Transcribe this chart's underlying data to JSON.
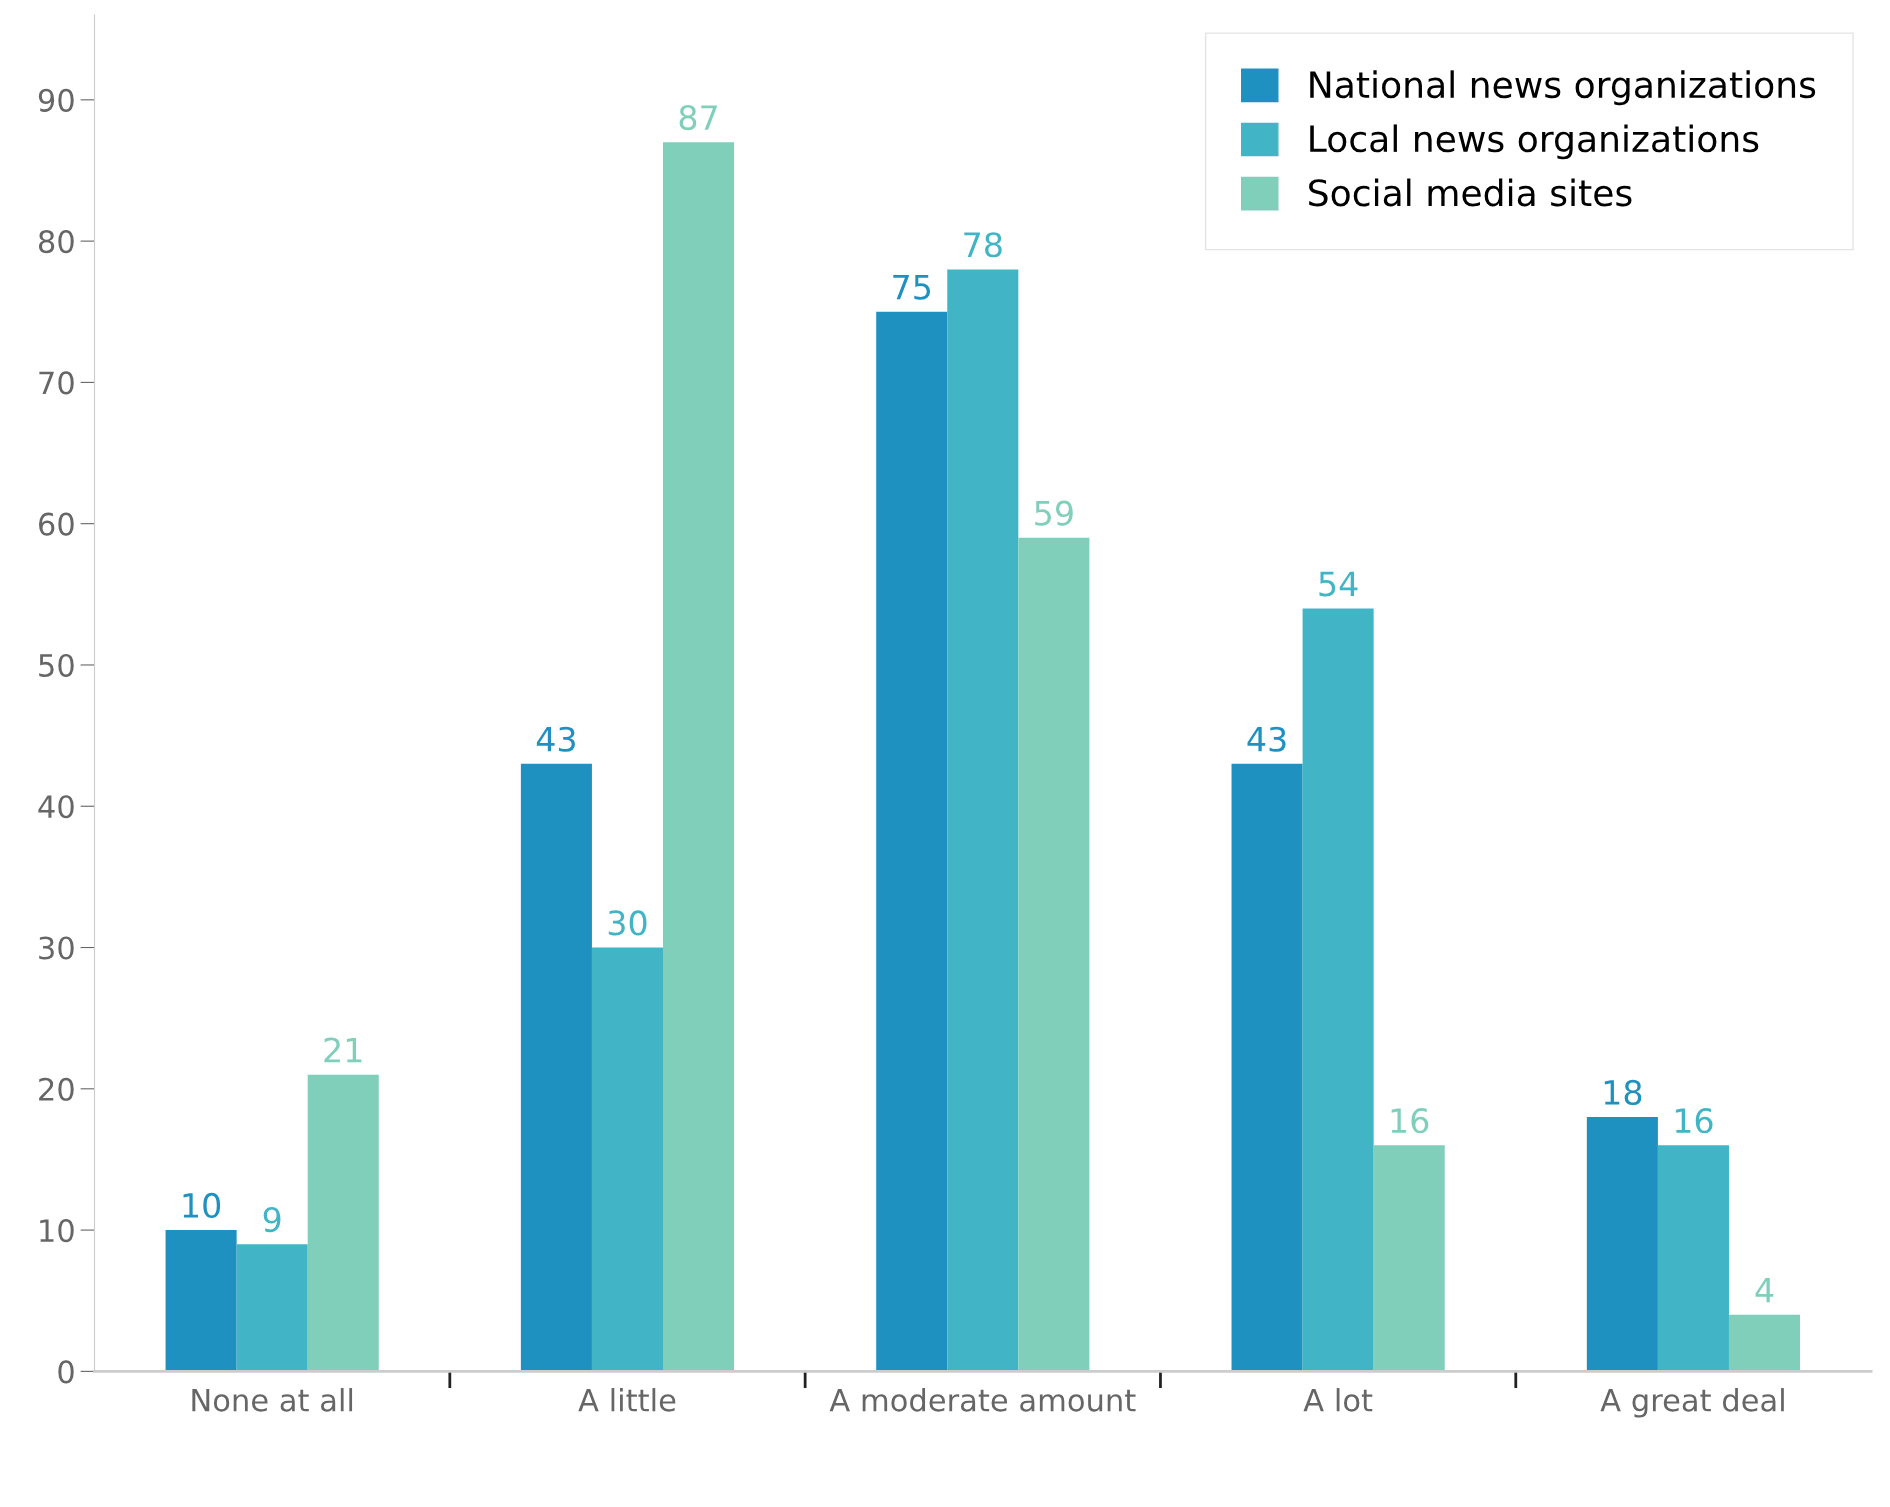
{
  "chart_data": {
    "type": "bar",
    "categories": [
      "None at all",
      "A little",
      "A moderate amount",
      "A lot",
      "A great deal"
    ],
    "series": [
      {
        "name": "National news organizations",
        "color": "#1f91c1",
        "values": [
          10,
          43,
          75,
          43,
          18
        ]
      },
      {
        "name": "Local news organizations",
        "color": "#41b5c5",
        "values": [
          9,
          30,
          78,
          54,
          16
        ]
      },
      {
        "name": "Social media sites",
        "color": "#7fcfbb",
        "values": [
          21,
          87,
          59,
          16,
          4
        ]
      }
    ],
    "ylim": [
      0,
      96
    ],
    "yticks": [
      0,
      10,
      20,
      30,
      40,
      50,
      60,
      70,
      80,
      90
    ],
    "data_labels": true,
    "legend": "top right",
    "grid": false
  }
}
